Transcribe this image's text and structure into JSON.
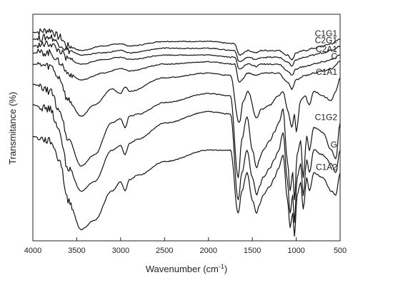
{
  "chart_data": {
    "type": "line",
    "title": "",
    "xlabel": "Wavenumber (cm",
    "xlabel_sup": "-1",
    "xlabel_tail": ")",
    "ylabel": "Transmitance (%)",
    "xlim": [
      4000,
      500
    ],
    "x_reversed": true,
    "ylim": [
      0,
      100
    ],
    "y_ticks_labeled": false,
    "grid": false,
    "legend": "none (series labelled at right end of each line)",
    "xticks": [
      4000,
      3500,
      3000,
      2500,
      2000,
      1500,
      1000,
      500
    ],
    "xtick_labels": [
      "4000",
      "3500",
      "3000",
      "2500",
      "2000",
      "1500",
      "1000",
      "500"
    ],
    "line_color": "#111111",
    "series": [
      {
        "name": "C1G1",
        "label": "C1G1",
        "baseline": 91,
        "scale": 0.12,
        "points": [
          [
            4000,
            92
          ],
          [
            3800,
            93
          ],
          [
            3700,
            90
          ],
          [
            3600,
            86
          ],
          [
            3450,
            84
          ],
          [
            3200,
            86
          ],
          [
            3000,
            87
          ],
          [
            2900,
            86
          ],
          [
            2500,
            88
          ],
          [
            2000,
            88
          ],
          [
            1700,
            87
          ],
          [
            1650,
            82
          ],
          [
            1550,
            84
          ],
          [
            1450,
            83
          ],
          [
            1400,
            84
          ],
          [
            1200,
            84
          ],
          [
            1100,
            82
          ],
          [
            1050,
            80
          ],
          [
            1000,
            83
          ],
          [
            900,
            84
          ],
          [
            800,
            85
          ],
          [
            700,
            86
          ],
          [
            600,
            87
          ],
          [
            500,
            89
          ]
        ]
      },
      {
        "name": "C2G1",
        "label": "C2G1",
        "baseline": 88,
        "scale": 0.12,
        "points": [
          [
            4000,
            89
          ],
          [
            3800,
            90
          ],
          [
            3700,
            87
          ],
          [
            3600,
            84
          ],
          [
            3450,
            82
          ],
          [
            3200,
            83
          ],
          [
            3000,
            84
          ],
          [
            2900,
            83
          ],
          [
            2500,
            85
          ],
          [
            2000,
            85
          ],
          [
            1700,
            84
          ],
          [
            1650,
            79
          ],
          [
            1550,
            81
          ],
          [
            1450,
            80
          ],
          [
            1400,
            81
          ],
          [
            1200,
            81
          ],
          [
            1100,
            79
          ],
          [
            1050,
            77
          ],
          [
            1000,
            80
          ],
          [
            900,
            81
          ],
          [
            800,
            82
          ],
          [
            700,
            83
          ],
          [
            600,
            84
          ],
          [
            500,
            86
          ]
        ]
      },
      {
        "name": "C2A1",
        "label": "C2A1",
        "baseline": 85,
        "scale": 0.14,
        "points": [
          [
            4000,
            86
          ],
          [
            3800,
            87
          ],
          [
            3700,
            84
          ],
          [
            3600,
            80
          ],
          [
            3450,
            78
          ],
          [
            3200,
            80
          ],
          [
            3000,
            81
          ],
          [
            2900,
            80
          ],
          [
            2500,
            82
          ],
          [
            2000,
            82
          ],
          [
            1700,
            81
          ],
          [
            1650,
            76
          ],
          [
            1550,
            78
          ],
          [
            1450,
            77
          ],
          [
            1400,
            78
          ],
          [
            1200,
            78
          ],
          [
            1100,
            75
          ],
          [
            1050,
            73
          ],
          [
            1000,
            76
          ],
          [
            900,
            77
          ],
          [
            800,
            78
          ],
          [
            700,
            79
          ],
          [
            600,
            80
          ],
          [
            500,
            82
          ]
        ]
      },
      {
        "name": "C",
        "label": "C",
        "baseline": 82,
        "scale": 0.2,
        "points": [
          [
            4000,
            83
          ],
          [
            3800,
            83
          ],
          [
            3700,
            79
          ],
          [
            3600,
            74
          ],
          [
            3450,
            71
          ],
          [
            3200,
            74
          ],
          [
            3000,
            76
          ],
          [
            2900,
            75
          ],
          [
            2500,
            78
          ],
          [
            2000,
            79
          ],
          [
            1700,
            78
          ],
          [
            1650,
            70
          ],
          [
            1550,
            74
          ],
          [
            1450,
            73
          ],
          [
            1400,
            74
          ],
          [
            1200,
            74
          ],
          [
            1100,
            70
          ],
          [
            1050,
            67
          ],
          [
            1000,
            71
          ],
          [
            900,
            73
          ],
          [
            800,
            74
          ],
          [
            700,
            75
          ],
          [
            600,
            76
          ],
          [
            500,
            79
          ]
        ]
      },
      {
        "name": "C1A1",
        "label": "C1A1",
        "baseline": 78,
        "scale": 0.6,
        "points": [
          [
            4000,
            78
          ],
          [
            3800,
            77
          ],
          [
            3700,
            72
          ],
          [
            3600,
            62
          ],
          [
            3450,
            55
          ],
          [
            3300,
            60
          ],
          [
            3100,
            67
          ],
          [
            3000,
            65
          ],
          [
            2950,
            68
          ],
          [
            2900,
            66
          ],
          [
            2500,
            72
          ],
          [
            2000,
            74
          ],
          [
            1750,
            73
          ],
          [
            1650,
            52
          ],
          [
            1600,
            62
          ],
          [
            1550,
            66
          ],
          [
            1450,
            54
          ],
          [
            1400,
            58
          ],
          [
            1300,
            60
          ],
          [
            1200,
            64
          ],
          [
            1150,
            66
          ],
          [
            1100,
            58
          ],
          [
            1050,
            50
          ],
          [
            1020,
            56
          ],
          [
            1000,
            48
          ],
          [
            950,
            62
          ],
          [
            900,
            64
          ],
          [
            850,
            60
          ],
          [
            800,
            66
          ],
          [
            700,
            64
          ],
          [
            600,
            62
          ],
          [
            550,
            66
          ],
          [
            500,
            72
          ]
        ]
      },
      {
        "name": "C1G2",
        "label": "C1G2",
        "baseline": 70,
        "scale": 1.0,
        "points": [
          [
            4000,
            69
          ],
          [
            3800,
            66
          ],
          [
            3700,
            58
          ],
          [
            3600,
            45
          ],
          [
            3450,
            33
          ],
          [
            3300,
            38
          ],
          [
            3100,
            52
          ],
          [
            3000,
            54
          ],
          [
            2950,
            50
          ],
          [
            2900,
            55
          ],
          [
            2800,
            56
          ],
          [
            2500,
            61
          ],
          [
            2000,
            65
          ],
          [
            1750,
            64
          ],
          [
            1660,
            28
          ],
          [
            1620,
            45
          ],
          [
            1560,
            55
          ],
          [
            1500,
            40
          ],
          [
            1450,
            32
          ],
          [
            1420,
            36
          ],
          [
            1380,
            40
          ],
          [
            1300,
            44
          ],
          [
            1250,
            48
          ],
          [
            1200,
            52
          ],
          [
            1150,
            58
          ],
          [
            1100,
            35
          ],
          [
            1070,
            22
          ],
          [
            1040,
            30
          ],
          [
            1020,
            18
          ],
          [
            990,
            38
          ],
          [
            950,
            44
          ],
          [
            920,
            28
          ],
          [
            880,
            46
          ],
          [
            850,
            40
          ],
          [
            800,
            50
          ],
          [
            700,
            48
          ],
          [
            600,
            40
          ],
          [
            550,
            36
          ],
          [
            500,
            52
          ]
        ]
      },
      {
        "name": "G",
        "label": "G",
        "baseline": 52,
        "scale": 1.0,
        "points": [
          [
            4000,
            60
          ],
          [
            3800,
            58
          ],
          [
            3700,
            48
          ],
          [
            3600,
            32
          ],
          [
            3450,
            22
          ],
          [
            3300,
            26
          ],
          [
            3100,
            40
          ],
          [
            3000,
            42
          ],
          [
            2950,
            38
          ],
          [
            2900,
            43
          ],
          [
            2800,
            45
          ],
          [
            2500,
            52
          ],
          [
            2000,
            57
          ],
          [
            1750,
            56
          ],
          [
            1660,
            18
          ],
          [
            1620,
            30
          ],
          [
            1560,
            40
          ],
          [
            1500,
            28
          ],
          [
            1450,
            20
          ],
          [
            1420,
            24
          ],
          [
            1380,
            28
          ],
          [
            1300,
            32
          ],
          [
            1250,
            36
          ],
          [
            1200,
            40
          ],
          [
            1150,
            48
          ],
          [
            1100,
            26
          ],
          [
            1070,
            12
          ],
          [
            1040,
            20
          ],
          [
            1020,
            8
          ],
          [
            990,
            28
          ],
          [
            950,
            34
          ],
          [
            920,
            20
          ],
          [
            880,
            36
          ],
          [
            850,
            30
          ],
          [
            800,
            40
          ],
          [
            700,
            38
          ],
          [
            600,
            34
          ],
          [
            550,
            30
          ],
          [
            500,
            40
          ]
        ]
      },
      {
        "name": "C1A2",
        "label": "C1A2",
        "baseline": 42,
        "scale": 1.0,
        "points": [
          [
            4000,
            46
          ],
          [
            3800,
            44
          ],
          [
            3700,
            36
          ],
          [
            3600,
            18
          ],
          [
            3450,
            5
          ],
          [
            3300,
            9
          ],
          [
            3100,
            22
          ],
          [
            3000,
            26
          ],
          [
            2950,
            22
          ],
          [
            2900,
            27
          ],
          [
            2800,
            29
          ],
          [
            2500,
            35
          ],
          [
            2000,
            40
          ],
          [
            1750,
            40
          ],
          [
            1660,
            12
          ],
          [
            1620,
            22
          ],
          [
            1560,
            30
          ],
          [
            1500,
            18
          ],
          [
            1450,
            12
          ],
          [
            1420,
            16
          ],
          [
            1380,
            20
          ],
          [
            1300,
            24
          ],
          [
            1250,
            28
          ],
          [
            1200,
            32
          ],
          [
            1150,
            38
          ],
          [
            1100,
            18
          ],
          [
            1070,
            6
          ],
          [
            1040,
            12
          ],
          [
            1020,
            2
          ],
          [
            990,
            20
          ],
          [
            950,
            26
          ],
          [
            920,
            14
          ],
          [
            880,
            28
          ],
          [
            850,
            22
          ],
          [
            800,
            30
          ],
          [
            700,
            28
          ],
          [
            600,
            22
          ],
          [
            550,
            20
          ],
          [
            500,
            30
          ]
        ]
      }
    ]
  }
}
